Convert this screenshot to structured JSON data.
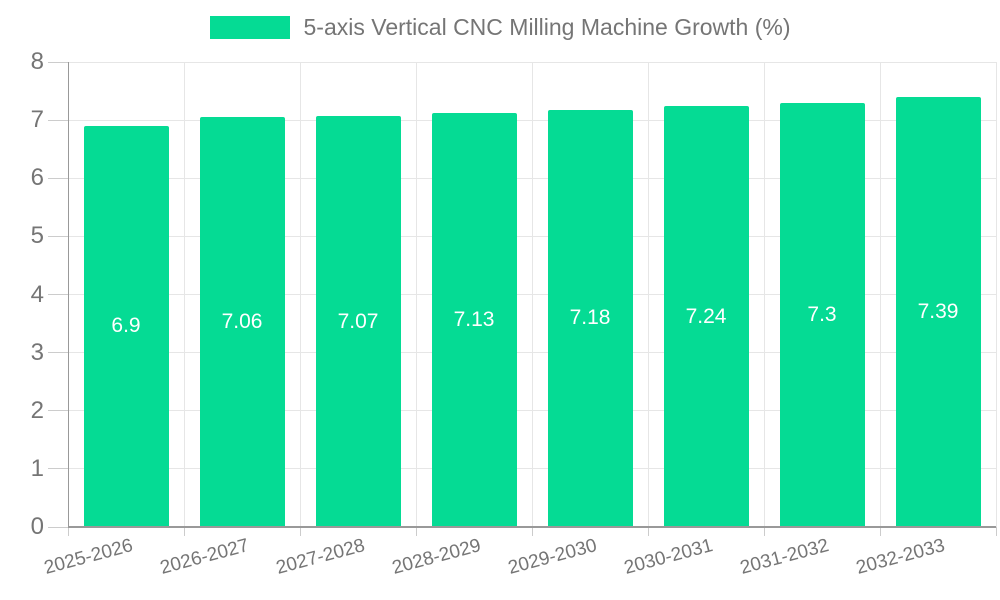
{
  "chart_data": {
    "type": "bar",
    "title": "5-axis Vertical CNC Milling Machine Growth (%)",
    "series_name": "5-axis Vertical CNC Milling Machine Growth (%)",
    "categories": [
      "2025-2026",
      "2026-2027",
      "2027-2028",
      "2028-2029",
      "2029-2030",
      "2030-2031",
      "2031-2032",
      "2032-2033"
    ],
    "values": [
      6.9,
      7.06,
      7.07,
      7.13,
      7.18,
      7.24,
      7.3,
      7.39
    ],
    "value_labels": [
      "6.9",
      "7.06",
      "7.07",
      "7.13",
      "7.18",
      "7.24",
      "7.3",
      "7.39"
    ],
    "xlabel": "",
    "ylabel": "",
    "ylim": [
      0,
      8
    ],
    "yticks": [
      0,
      1,
      2,
      3,
      4,
      5,
      6,
      7,
      8
    ],
    "ytick_labels": [
      "0",
      "1",
      "2",
      "3",
      "4",
      "5",
      "6",
      "7",
      "8"
    ],
    "grid": true,
    "legend_position": "top"
  },
  "colors": {
    "bar": "#05db94",
    "grid": "#e6e6e6",
    "axis": "#999999",
    "tick": "#cccccc",
    "text": "#757575",
    "bar_label": "#ffffff",
    "background": "#ffffff"
  }
}
